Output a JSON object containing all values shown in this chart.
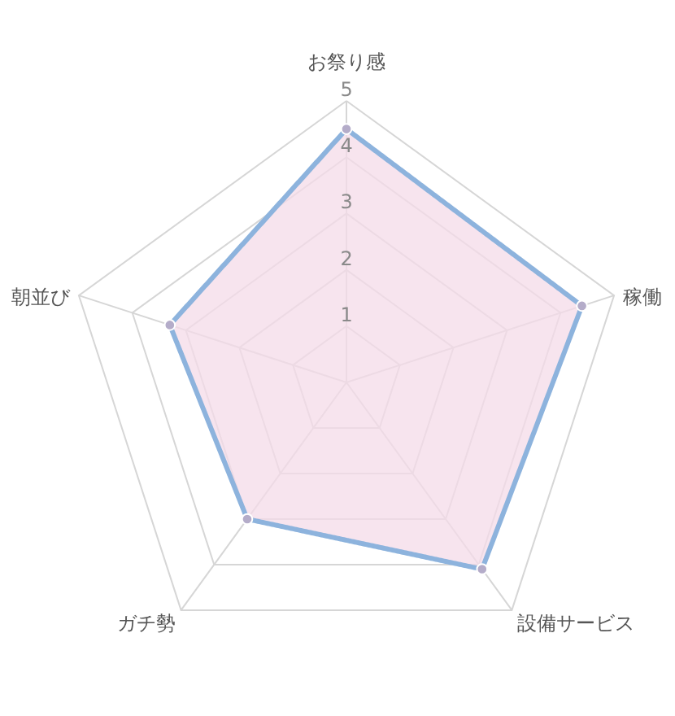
{
  "chart_data": {
    "type": "radar",
    "categories": [
      "お祭り感",
      "稼働",
      "設備サービス",
      "ガチ勢",
      "朝並び"
    ],
    "series": [
      {
        "color": "#8db3dd",
        "values": [
          4.5,
          4.4,
          4.1,
          3,
          3.3
        ]
      }
    ],
    "ylim": [
      0,
      5
    ],
    "yticks": [
      1,
      2,
      3,
      4,
      5
    ],
    "grid": true,
    "marker": "circle"
  }
}
